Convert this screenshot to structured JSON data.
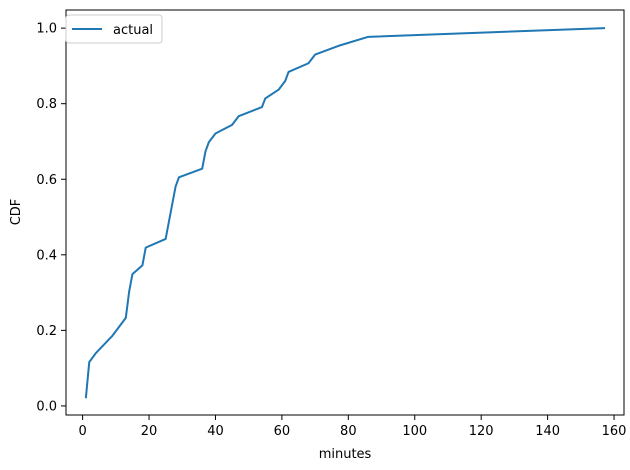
{
  "chart_data": {
    "type": "line",
    "xlabel": "minutes",
    "ylabel": "CDF",
    "xlim": [
      -5,
      163
    ],
    "ylim": [
      -0.024,
      1.048
    ],
    "x_ticks": [
      0,
      20,
      40,
      60,
      80,
      100,
      120,
      140,
      160
    ],
    "y_ticks": [
      0.0,
      0.2,
      0.4,
      0.6,
      0.8,
      1.0
    ],
    "x_tick_labels": [
      "0",
      "20",
      "40",
      "60",
      "80",
      "100",
      "120",
      "140",
      "160"
    ],
    "y_tick_labels": [
      "0.0",
      "0.2",
      "0.4",
      "0.6",
      "0.8",
      "1.0"
    ],
    "grid": false,
    "legend": {
      "position": "top-left"
    },
    "series": [
      {
        "name": "actual",
        "color": "#1f77b4",
        "x": [
          1,
          2,
          4,
          9,
          13,
          14,
          15,
          18,
          19,
          25,
          27,
          28,
          29,
          36,
          37,
          38,
          40,
          45,
          47,
          54,
          55,
          59,
          61,
          62,
          68,
          70,
          77,
          86,
          157
        ],
        "y": [
          0.023,
          0.116,
          0.14,
          0.186,
          0.233,
          0.302,
          0.349,
          0.372,
          0.419,
          0.442,
          0.535,
          0.581,
          0.605,
          0.628,
          0.674,
          0.698,
          0.721,
          0.744,
          0.767,
          0.791,
          0.814,
          0.837,
          0.86,
          0.884,
          0.907,
          0.93,
          0.953,
          0.977,
          1.0
        ]
      }
    ]
  }
}
